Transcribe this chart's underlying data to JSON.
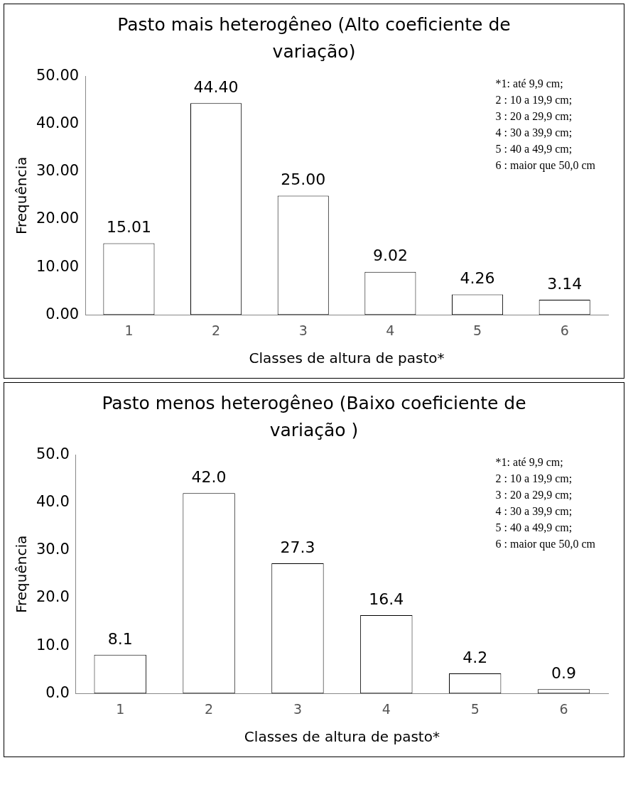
{
  "chart_data": [
    {
      "type": "bar",
      "title": "Pasto mais heterogêneo (Alto coeficiente de variação)",
      "xlabel": "Classes de altura de pasto*",
      "ylabel": "Frequência",
      "categories": [
        "1",
        "2",
        "3",
        "4",
        "5",
        "6"
      ],
      "values": [
        15.01,
        44.4,
        25.0,
        9.02,
        4.26,
        3.14
      ],
      "value_labels": [
        "15.01",
        "44.40",
        "25.00",
        "9.02",
        "4.26",
        "3.14"
      ],
      "color": "#ffffff",
      "ylim": [
        0,
        50
      ],
      "yticks": [
        {
          "value": 0,
          "label": "0.00"
        },
        {
          "value": 10,
          "label": "10.00"
        },
        {
          "value": 20,
          "label": "20.00"
        },
        {
          "value": 30,
          "label": "30.00"
        },
        {
          "value": 40,
          "label": "40.00"
        },
        {
          "value": 50,
          "label": "50.00"
        }
      ],
      "annotations": [
        "*1: até 9,9 cm;",
        "2 : 10 a 19,9 cm;",
        "3 : 20 a 29,9 cm;",
        "4 : 30 a 39,9 cm;",
        "5 : 40 a 49,9 cm;",
        "6 : maior que 50,0 cm"
      ]
    },
    {
      "type": "bar",
      "title": "Pasto menos heterogêneo (Baixo coeficiente de variação )",
      "xlabel": "Classes de altura de pasto*",
      "ylabel": "Frequência",
      "categories": [
        "1",
        "2",
        "3",
        "4",
        "5",
        "6"
      ],
      "values": [
        8.1,
        42.0,
        27.3,
        16.4,
        4.2,
        0.9
      ],
      "value_labels": [
        "8.1",
        "42.0",
        "27.3",
        "16.4",
        "4.2",
        "0.9"
      ],
      "color": "#ffffff",
      "ylim": [
        0,
        50
      ],
      "yticks": [
        {
          "value": 0,
          "label": "0.0"
        },
        {
          "value": 10,
          "label": "10.0"
        },
        {
          "value": 20,
          "label": "20.0"
        },
        {
          "value": 30,
          "label": "30.0"
        },
        {
          "value": 40,
          "label": "40.0"
        },
        {
          "value": 50,
          "label": "50.0"
        }
      ],
      "annotations": [
        "*1: até 9,9 cm;",
        "2 : 10 a 19,9 cm;",
        "3 : 20 a 29,9 cm;",
        "4 : 30 a 39,9 cm;",
        "5 : 40 a 49,9 cm;",
        "6 : maior que 50,0 cm"
      ]
    }
  ]
}
